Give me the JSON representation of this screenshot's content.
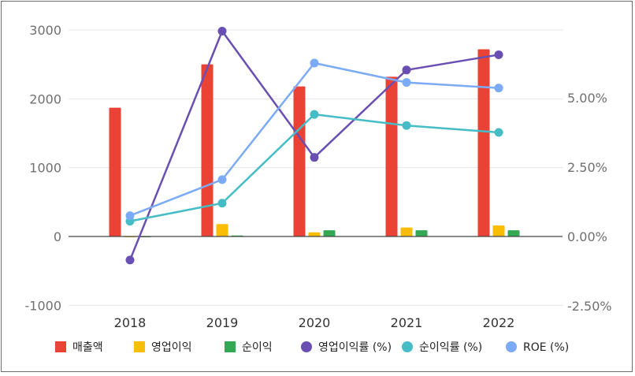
{
  "chart_data": {
    "type": "bar+line",
    "categories": [
      "2018",
      "2019",
      "2020",
      "2021",
      "2022"
    ],
    "left_axis": {
      "ticks": [
        3000,
        2000,
        1000,
        0,
        -1000
      ],
      "tick_labels": [
        "3000",
        "2000",
        "1000",
        "0",
        "-1000"
      ],
      "ylim": [
        -1000,
        3000
      ]
    },
    "right_axis": {
      "ticks": [
        5.0,
        2.5,
        0.0,
        -2.5
      ],
      "tick_labels": [
        "5.00%",
        "2.50%",
        "0.00%",
        "-2.50%"
      ],
      "ylim": [
        -2.5,
        7.4
      ]
    },
    "bar_series": [
      {
        "name": "매출액",
        "color": "#ea4335",
        "values": [
          1870,
          2500,
          2180,
          2320,
          2720
        ]
      },
      {
        "name": "영업이익",
        "color": "#fbbc04",
        "values": [
          -10,
          180,
          60,
          130,
          160
        ]
      },
      {
        "name": "순이익",
        "color": "#34a853",
        "values": [
          -5,
          15,
          90,
          90,
          90
        ]
      }
    ],
    "line_series": [
      {
        "name": "영업이익률 (%)",
        "color": "#6a4fb3",
        "values": [
          -0.85,
          7.4,
          2.85,
          6.0,
          6.55
        ]
      },
      {
        "name": "순이익률 (%)",
        "color": "#46bdc6",
        "values": [
          0.55,
          1.2,
          4.4,
          4.0,
          3.75
        ]
      },
      {
        "name": "ROE (%)",
        "color": "#7baaf7",
        "values": [
          0.75,
          2.05,
          6.25,
          5.55,
          5.35
        ]
      }
    ],
    "grid": true,
    "legend_position": "bottom"
  }
}
